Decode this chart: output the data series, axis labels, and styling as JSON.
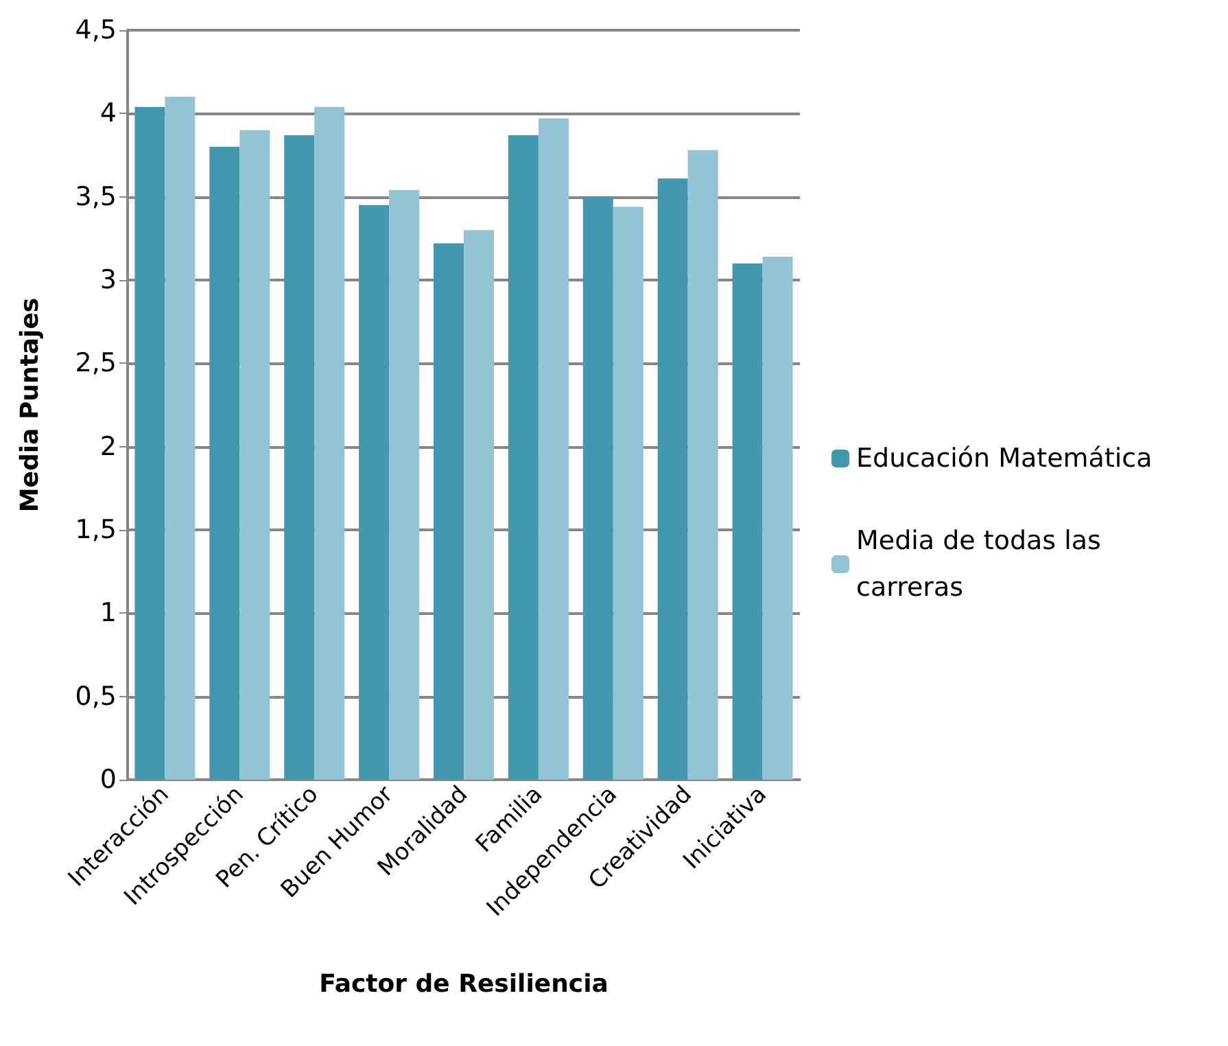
{
  "chart_data": {
    "type": "bar",
    "xlabel": "Factor de Resiliencia",
    "ylabel": "Media Puntajes",
    "categories": [
      "Interacción",
      "Introspección",
      "Pen. Crítico",
      "Buen Humor",
      "Moralidad",
      "Familia",
      "Independencia",
      "Creatividad",
      "Iniciativa"
    ],
    "series": [
      {
        "name": "Educación Matemática",
        "color": "#4398b0",
        "values": [
          4.04,
          3.8,
          3.87,
          3.45,
          3.22,
          3.87,
          3.5,
          3.61,
          3.1
        ]
      },
      {
        "name": "Media de todas las carreras",
        "color": "#93c3d4",
        "values": [
          4.1,
          3.9,
          4.04,
          3.54,
          3.3,
          3.97,
          3.44,
          3.78,
          3.14
        ]
      }
    ],
    "ylim": [
      0,
      4.5
    ],
    "yticks": [
      0,
      {
        "value": 0.5,
        "label": "0,5"
      },
      1,
      {
        "value": 1.5,
        "label": "1,5"
      },
      2,
      {
        "value": 2.5,
        "label": "2,5"
      },
      3,
      {
        "value": 3.5,
        "label": "3,5"
      },
      4,
      {
        "value": 4.5,
        "label": "4,5"
      }
    ],
    "grid": "y",
    "legend": "right"
  }
}
